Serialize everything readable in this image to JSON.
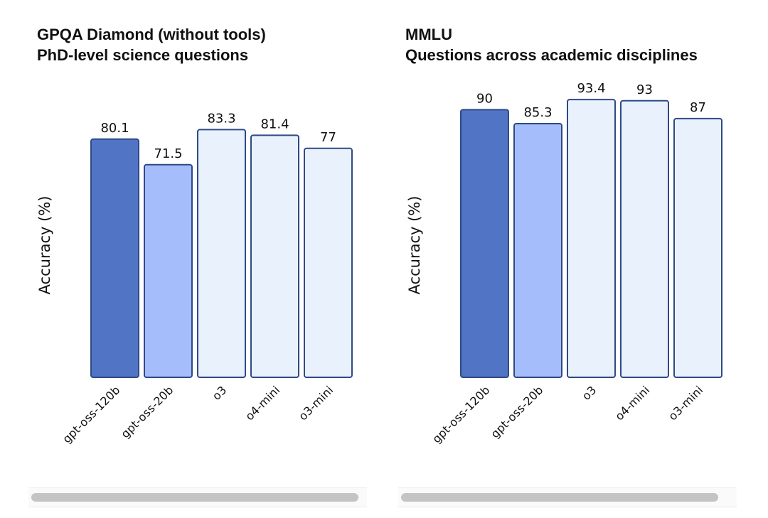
{
  "colors": {
    "bar_primary": "#5175C4",
    "bar_secondary": "#A5BDFA",
    "bar_light": "#E9F1FD",
    "bar_outline": "#2E4A86"
  },
  "chart_data": [
    {
      "type": "bar",
      "title": "GPQA Diamond (without tools)",
      "subtitle": "PhD-level science questions",
      "xlabel": "",
      "ylabel": "Accuracy (%)",
      "ylim": [
        0,
        100
      ],
      "grid": false,
      "categories": [
        "gpt-oss-120b",
        "gpt-oss-20b",
        "o3",
        "o4-mini",
        "o3-mini"
      ],
      "values": [
        80.1,
        71.5,
        83.3,
        81.4,
        77
      ],
      "value_labels": [
        "80.1",
        "71.5",
        "83.3",
        "81.4",
        "77"
      ],
      "bar_colors": [
        "#5175C4",
        "#A5BDFA",
        "#E9F1FD",
        "#E9F1FD",
        "#E9F1FD"
      ]
    },
    {
      "type": "bar",
      "title": "MMLU",
      "subtitle": "Questions across academic disciplines",
      "xlabel": "",
      "ylabel": "Accuracy (%)",
      "ylim": [
        0,
        100
      ],
      "grid": false,
      "categories": [
        "gpt-oss-120b",
        "gpt-oss-20b",
        "o3",
        "o4-mini",
        "o3-mini"
      ],
      "values": [
        90,
        85.3,
        93.4,
        93,
        87
      ],
      "value_labels": [
        "90",
        "85.3",
        "93.4",
        "93",
        "87"
      ],
      "bar_colors": [
        "#5175C4",
        "#A5BDFA",
        "#E9F1FD",
        "#E9F1FD",
        "#E9F1FD"
      ]
    }
  ]
}
